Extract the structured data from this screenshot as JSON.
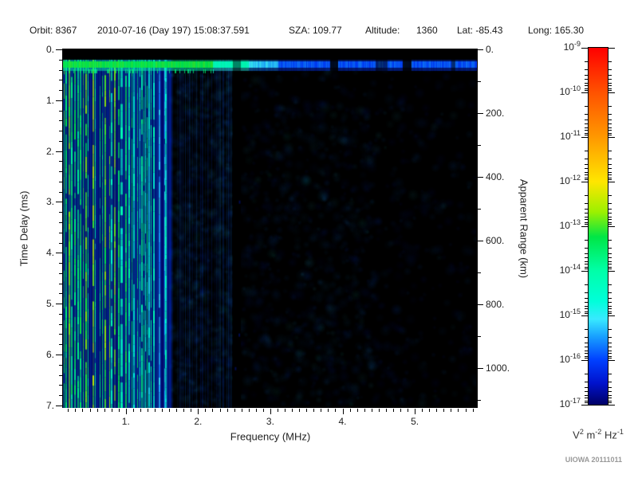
{
  "header": {
    "parts": [
      "Orbit: 8367",
      "2010-07-16 (Day 197) 15:08:37.591",
      "SZA: 109.77",
      "Altitude:",
      "1360",
      "Lat: -85.43",
      "Long: 165.30"
    ]
  },
  "chart_data": {
    "type": "heatmap",
    "title": "",
    "seed": 20111011,
    "x_axis": {
      "label": "Frequency (MHz)",
      "range": [
        0.13,
        5.86
      ],
      "major_ticks": [
        {
          "value": 1,
          "label": "1."
        },
        {
          "value": 2,
          "label": "2."
        },
        {
          "value": 3,
          "label": "3."
        },
        {
          "value": 4,
          "label": "4."
        },
        {
          "value": 5,
          "label": "5."
        }
      ],
      "minor_tick_step": 0.1
    },
    "y_axis_left": {
      "label": "Time Delay (ms)",
      "range": [
        0,
        7.05
      ],
      "major_ticks": [
        {
          "value": 0,
          "label": "0."
        },
        {
          "value": 1,
          "label": "1."
        },
        {
          "value": 2,
          "label": "2."
        },
        {
          "value": 3,
          "label": "3."
        },
        {
          "value": 4,
          "label": "4."
        },
        {
          "value": 5,
          "label": "5."
        },
        {
          "value": 6,
          "label": "6."
        },
        {
          "value": 7,
          "label": "7."
        }
      ],
      "minor_tick_step": 0.2
    },
    "y_axis_right": {
      "label": "Apparent Range (km)",
      "range": [
        0,
        1125
      ],
      "major_ticks": [
        {
          "value": 0,
          "label": "0."
        },
        {
          "value": 200,
          "label": "200."
        },
        {
          "value": 400,
          "label": "400."
        },
        {
          "value": 600,
          "label": "600."
        },
        {
          "value": 800,
          "label": "800."
        },
        {
          "value": 1000,
          "label": "1000."
        }
      ],
      "minor_tick_step": 100
    },
    "colorbar": {
      "scale": "log",
      "label_base": "10",
      "decade_exponents": [
        "-9",
        "-10",
        "-11",
        "-12",
        "-13",
        "-14",
        "-15",
        "-16",
        "-17"
      ],
      "unit": {
        "b1": "V",
        "e1": "2",
        "b2": "m",
        "e2": "-2",
        "b3": "Hz",
        "e3": "-1"
      },
      "gradient_stops": [
        {
          "frac": 0.0,
          "color": "#ff0000"
        },
        {
          "frac": 0.125,
          "color": "#ff5200"
        },
        {
          "frac": 0.25,
          "color": "#ff9800"
        },
        {
          "frac": 0.375,
          "color": "#ffe600"
        },
        {
          "frac": 0.46,
          "color": "#9cf000"
        },
        {
          "frac": 0.53,
          "color": "#00e646"
        },
        {
          "frac": 0.625,
          "color": "#00ffa8"
        },
        {
          "frac": 0.71,
          "color": "#00ffd9"
        },
        {
          "frac": 0.76,
          "color": "#38e9ff"
        },
        {
          "frac": 0.81,
          "color": "#189eff"
        },
        {
          "frac": 0.875,
          "color": "#0040ff"
        },
        {
          "frac": 0.94,
          "color": "#0012cc"
        },
        {
          "frac": 1.0,
          "color": "#000066"
        }
      ]
    },
    "features": [
      {
        "name": "transmit-blackout",
        "kind": "black-band-horizontal",
        "f_mhz": [
          0.13,
          5.86
        ],
        "t_ms": [
          0.0,
          0.2
        ]
      },
      {
        "name": "local-echo-band",
        "kind": "horizontal-band",
        "t_ms": [
          0.2,
          0.42
        ],
        "segments": [
          {
            "f": [
              0.13,
              2.2
            ],
            "v": 0.47
          },
          {
            "f": [
              2.2,
              2.7
            ],
            "v": 0.34
          },
          {
            "f": [
              2.7,
              3.1
            ],
            "v": 0.22
          },
          {
            "f": [
              3.1,
              5.86
            ],
            "v": 0.14
          }
        ],
        "gaps": [
          [
            3.82,
            3.93
          ],
          [
            4.83,
            4.95
          ]
        ],
        "dim": [
          [
            4.45,
            4.62
          ],
          [
            5.5,
            5.56
          ]
        ]
      },
      {
        "name": "plasma-oscillation-harmonics",
        "kind": "vertical-stripes",
        "f_mhz": [
          0.13,
          1.63
        ],
        "t_ms": [
          0.2,
          7.05
        ],
        "zones": [
          {
            "f": [
              0.13,
              0.88
            ],
            "density": 0.66,
            "v": [
              0.34,
              0.54
            ]
          },
          {
            "f": [
              0.88,
              1.25
            ],
            "density": 0.55,
            "v": [
              0.24,
              0.48
            ]
          },
          {
            "f": [
              1.25,
              1.42
            ],
            "density": 0.75,
            "v": [
              0.27,
              0.46
            ]
          },
          {
            "f": [
              1.42,
              1.63
            ],
            "density": 0.22,
            "v": [
              0.2,
              0.3
            ]
          }
        ],
        "bright_stripe_f": 1.54
      },
      {
        "name": "receiver-attenuation-gap",
        "kind": "black-band-vertical",
        "f_mhz": [
          2.48,
          2.59
        ],
        "t_ms": [
          0.2,
          7.05
        ]
      },
      {
        "name": "diffuse-ionospheric-scatter",
        "kind": "speckle",
        "zones": [
          {
            "f": [
              1.63,
              2.48
            ],
            "count": 950,
            "v": [
              0.08,
              0.24
            ],
            "r": [
              2.5,
              8
            ]
          },
          {
            "f": [
              2.59,
              4.42
            ],
            "count": 850,
            "v": [
              0.07,
              0.2
            ],
            "r": [
              3,
              9
            ]
          },
          {
            "f": [
              4.42,
              5.86
            ],
            "count": 500,
            "v": [
              0.06,
              0.18
            ],
            "r": [
              3,
              9
            ]
          }
        ]
      }
    ]
  },
  "footer": {
    "credit": "UIOWA 20111011"
  }
}
